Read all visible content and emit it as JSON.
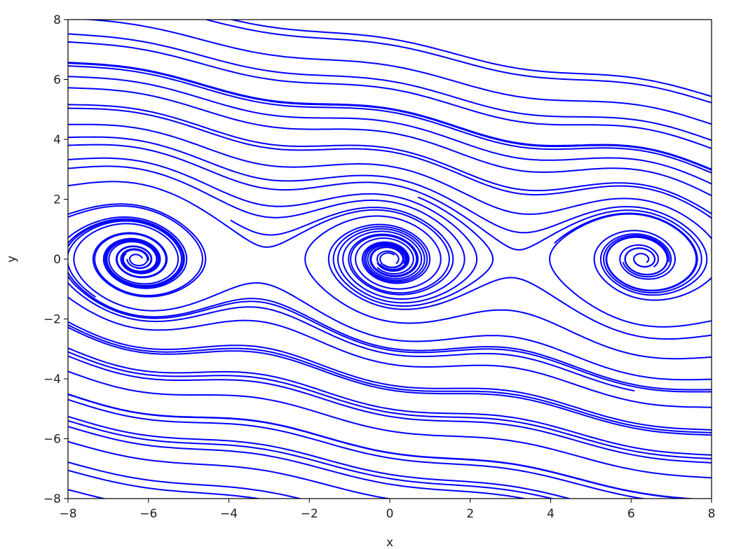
{
  "chart_data": {
    "type": "streamplot",
    "title": "",
    "xlabel": "x",
    "ylabel": "y",
    "xlim": [
      -8,
      8
    ],
    "ylim": [
      -8,
      8
    ],
    "xticks": [
      -8,
      -6,
      -4,
      -2,
      0,
      2,
      4,
      6,
      8
    ],
    "yticks": [
      -8,
      -6,
      -4,
      -2,
      0,
      2,
      4,
      6,
      8
    ],
    "xtick_labels": [
      "−8",
      "−6",
      "−4",
      "−2",
      "0",
      "2",
      "4",
      "6",
      "8"
    ],
    "ytick_labels": [
      "−8",
      "−6",
      "−4",
      "−2",
      "0",
      "2",
      "4",
      "6",
      "8"
    ],
    "spiral_centers": [
      [
        -6.283,
        0
      ],
      [
        0,
        0
      ],
      [
        6.283,
        0
      ]
    ],
    "grid": false,
    "line_color": "#0000ff"
  }
}
